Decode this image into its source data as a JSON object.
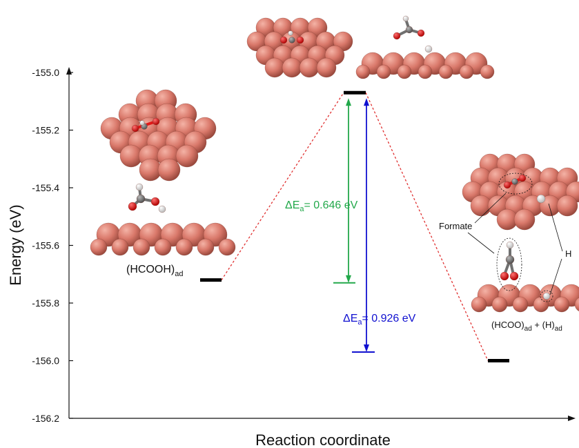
{
  "chart_data": {
    "type": "line",
    "xlabel": "Reaction coordinate",
    "ylabel": "Energy (eV)",
    "ylim": [
      -156.2,
      -155.0
    ],
    "yticks": [
      -155.0,
      -155.2,
      -155.4,
      -155.6,
      -155.8,
      -156.0,
      -156.2
    ],
    "ytick_labels": [
      "-155.0",
      "-155.2",
      "-155.4",
      "-155.6",
      "-155.8",
      "-156.0",
      "-156.2"
    ],
    "grid": false,
    "states": [
      {
        "label_main": "(HCOOH)",
        "label_sub": "ad",
        "energy": -155.72
      },
      {
        "label_main": "",
        "label_sub": "",
        "energy": -155.07
      },
      {
        "label_main": "(HCOO)",
        "label_sub": "ad",
        "label_extra": " + (H)",
        "label_extra_sub": "ad",
        "energy": -156.0
      }
    ],
    "reference_levels": [
      {
        "energy": -155.73,
        "color": "#22a84a"
      },
      {
        "energy": -155.97,
        "color": "#1010d0"
      }
    ],
    "barriers": [
      {
        "prefix": "ΔE",
        "sub": "a",
        "text": "= 0.646 eV",
        "color": "#22a84a"
      },
      {
        "prefix": "ΔE",
        "sub": "a",
        "text": "= 0.926 eV",
        "color": "#1010d0"
      }
    ],
    "annotations": {
      "formate": "Formate",
      "hydrogen": "H"
    },
    "colors": {
      "atom_cu": "#d9786a",
      "atom_o": "#e01818",
      "atom_c": "#707070",
      "atom_h": "#f2f2f2",
      "connector": "#e03030"
    }
  }
}
